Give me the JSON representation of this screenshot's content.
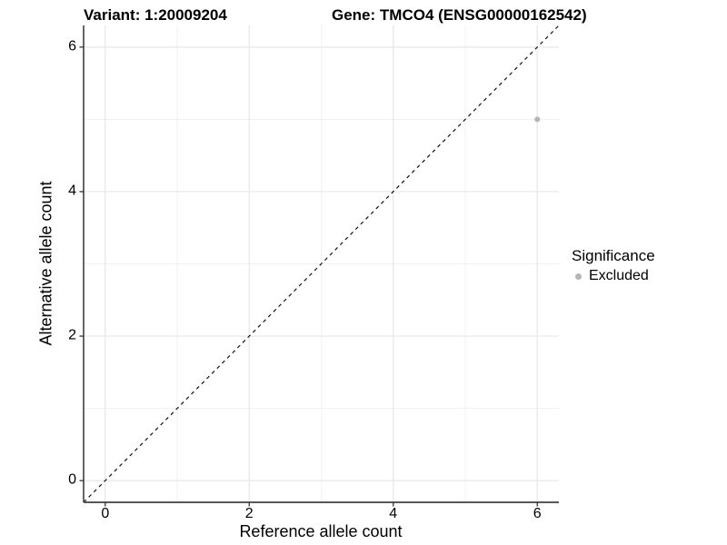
{
  "figure": {
    "background": "#ffffff",
    "title_left": "Variant: 1:20009204",
    "title_right": "Gene: TMCO4 (ENSG00000162542)"
  },
  "legend": {
    "title": "Significance",
    "position": "right",
    "items": [
      {
        "label": "Excluded",
        "color": "#b5b5b5",
        "shape": "circle"
      }
    ]
  },
  "chart_data": {
    "type": "scatter",
    "title": "Variant: 1:20009204   Gene: TMCO4 (ENSG00000162542)",
    "xlabel": "Reference allele count",
    "ylabel": "Alternative allele count",
    "xlim": [
      -0.3,
      6.3
    ],
    "ylim": [
      -0.3,
      6.3
    ],
    "x_major_ticks": [
      0,
      2,
      4,
      6
    ],
    "y_major_ticks": [
      0,
      2,
      4,
      6
    ],
    "x_minor_ticks": [
      1,
      3,
      5
    ],
    "y_minor_ticks": [
      1,
      3,
      5
    ],
    "x_tick_labels": [
      "0",
      "2",
      "4",
      "6"
    ],
    "y_tick_labels": [
      "0",
      "2",
      "4",
      "6"
    ],
    "grid": true,
    "legend_position": "right",
    "series": [
      {
        "name": "Excluded",
        "color": "#b5b5b5",
        "point_radius": 3,
        "points": [
          {
            "x": 6,
            "y": 5
          }
        ]
      }
    ],
    "reference_line": {
      "kind": "identity",
      "style": "dashed",
      "color": "#111111",
      "from": [
        -0.3,
        -0.3
      ],
      "to": [
        6.3,
        6.3
      ]
    },
    "colors": {
      "grid_major": "#e7e7e7",
      "grid_minor": "#f1f1f1",
      "axis_line": "#404040",
      "tick_mark": "#333333",
      "text": "#000000",
      "panel_background": "#ffffff"
    }
  }
}
